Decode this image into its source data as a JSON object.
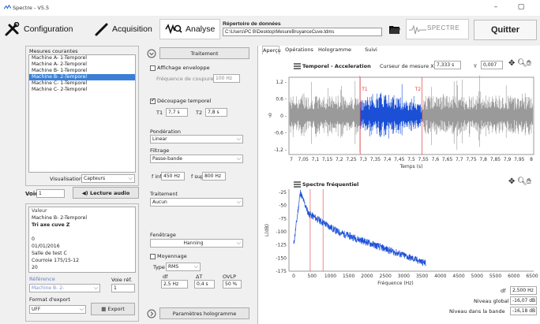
{
  "window": {
    "title": "Spectre - V5.5",
    "min": "–",
    "max": "▢"
  },
  "toolbar": {
    "configuration": "Configuration",
    "acquisition": "Acquisition",
    "analyse": "Analyse",
    "repertoire_label": "Répertoire de données",
    "repertoire_path": "C:\\Users\\PC B\\Desktop\\MesureBruyanceCuve.tdms",
    "quit": "Quitter",
    "logo_text": "SPECTRE"
  },
  "left": {
    "mesures_label": "Mesures courantes",
    "mesures": [
      "Machine A- 1-Temporel",
      "Machine A- 2-Temporel",
      "Machine B- 1-Temporel",
      "Machine B- 2-Temporel",
      "Machine C- 1-Temporel",
      "Machine C- 2-Temporel"
    ],
    "selected_index": 3,
    "visualisation_label": "Visualisation",
    "visualisation_value": "Capteurs",
    "voie_label": "Voie",
    "voie_value": "1",
    "lecture_audio": "Lecture audio",
    "info_lines": [
      "Valeur",
      "Machine B- 2-Temporel",
      "Tri axe cuve Z",
      "",
      "0",
      "01/01/2016",
      "Salle de test C",
      "Courroie 175/15-12",
      "20"
    ],
    "reference_label": "Référence",
    "voie_ref_label": "Voie réf.",
    "reference_value": "Machine B- 2-",
    "voie_ref_value": "1",
    "format_label": "Format d'export",
    "format_value": "UFF",
    "export": "Export"
  },
  "mid": {
    "traitement_btn": "Traitement",
    "affichage_enveloppe": "Affichage enveloppe",
    "frequence_coupure_label": "Fréquence de coupure",
    "frequence_coupure_value": "100 Hz",
    "decoupage": "Découpage temporel",
    "t1_label": "T1",
    "t1_value": "7,7 s",
    "t2_label": "T2",
    "t2_value": "7,8 s",
    "ponderation_label": "Pondération",
    "ponderation_value": "Linear",
    "filtrage_label": "Filtrage",
    "filtrage_value": "Passe-bande",
    "finf_label": "f inf",
    "finf_value": "450 Hz",
    "fsup_label": "f sup",
    "fsup_value": "800 Hz",
    "traitement_label": "Traitement",
    "traitement_value": "Aucun",
    "fenetrage_label": "Fenêtrage",
    "fenetrage_value": "Hanning",
    "moyennage": "Moyennage",
    "type_label": "Type",
    "type_value": "RMS",
    "df_label": "df",
    "dt_label": "ΔT",
    "ovlp_label": "OVLP",
    "df_value": "2,5 Hz",
    "dt_value": "0,4 s",
    "ovlp_value": "50 %",
    "hologramme_btn": "Paramètres hologramme"
  },
  "tabs": [
    "Aperçu",
    "Opérations",
    "Hologramme",
    "Suivi d'ordre"
  ],
  "temporal": {
    "title": "Temporel - Acceleration",
    "curseur_label": "Curseur de mesure X",
    "curseur_x": "7,333 s",
    "y_label": "Y",
    "curseur_y": "0,007",
    "ylabel": "g",
    "xlabel": "Temps (s)",
    "yticks": [
      "1,2 -",
      "0,6 -",
      "0 -",
      "-0,6 -",
      "-1,2 -"
    ],
    "xticks": [
      "7",
      "7,05",
      "7,1",
      "7,15",
      "7,2",
      "7,25",
      "7,3",
      "7,35",
      "7,4",
      "7,45",
      "7,5",
      "7,55",
      "7,6",
      "7,65",
      "7,7",
      "7,75",
      "7,8",
      "7,85",
      "7,9",
      "7,95",
      "8"
    ],
    "cursor1": "T1",
    "cursor2": "T2"
  },
  "spectre": {
    "title": "Spectre fréquentiel",
    "ylabel": "L(dB)",
    "xlabel": "Fréquence (Hz)",
    "yticks": [
      "-25",
      "-50",
      "-75",
      "-100",
      "-125",
      "-150",
      "-175"
    ],
    "xticks": [
      "0",
      "500",
      "1000",
      "1500",
      "2000",
      "2500",
      "3000",
      "3500",
      "4000",
      "4500",
      "5000",
      "5500",
      "6000",
      "6500"
    ],
    "df_label": "df",
    "df_value": "2,500 Hz",
    "niveau_global_label": "Niveau global",
    "niveau_global_value": "-16,07 dB",
    "niveau_bande_label": "Niveau dans la bande",
    "niveau_bande_value": "-16,18 dB"
  },
  "colors": {
    "signal_grey": "#9a9a9a",
    "signal_blue": "#1a4fd6",
    "spectrum": "#1a4fd6",
    "cursor": "#e04040",
    "selection": "#3a7fd5"
  }
}
